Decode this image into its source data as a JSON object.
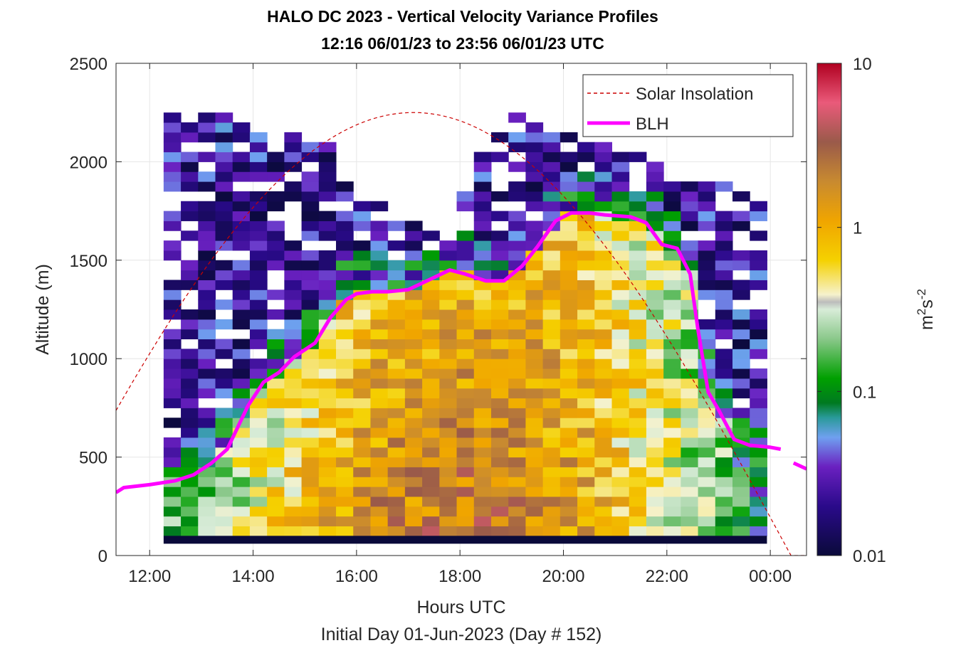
{
  "title": {
    "line1": "HALO DC 2023 - Vertical Velocity Variance Profiles",
    "line2": "12:16 06/01/23 to 23:56 06/01/23  UTC"
  },
  "chart_data": {
    "type": "heatmap",
    "xlabel": "Hours UTC",
    "xlabel2": "Initial Day 01-Jun-2023 (Day # 152)",
    "ylabel": "Altitude (m)",
    "xlim": [
      11.35,
      24.7
    ],
    "ylim": [
      0,
      2500
    ],
    "x_ticks": [
      12,
      14,
      16,
      18,
      20,
      22,
      24
    ],
    "x_tick_labels": [
      "12:00",
      "14:00",
      "16:00",
      "18:00",
      "20:00",
      "22:00",
      "00:00"
    ],
    "y_ticks": [
      0,
      500,
      1000,
      1500,
      2000,
      2500
    ],
    "y_tick_labels": [
      "0",
      "500",
      "1000",
      "1500",
      "2000",
      "2500"
    ],
    "grid": true,
    "legend": {
      "position": "top-right",
      "entries": [
        {
          "label": "Solar Insolation",
          "style": "dashed",
          "color": "#cc0000"
        },
        {
          "label": "BLH",
          "style": "solid",
          "color": "#ff00ff"
        }
      ]
    },
    "colorbar": {
      "label": "m²s⁻²",
      "scale": "log",
      "min": 0.01,
      "max": 10,
      "tick_labels": [
        "0.01",
        "0.1",
        "1",
        "10"
      ],
      "tick_values": [
        0.01,
        0.1,
        1,
        10
      ]
    },
    "heatmap": {
      "x_start": 12.27,
      "x_step": 0.3333,
      "columns": 35,
      "y_start": 100,
      "y_step": 50,
      "rows": 44,
      "value_range": [
        0.01,
        10
      ],
      "note_scale": "log"
    },
    "series": [
      {
        "name": "BLH",
        "x": [
          11.35,
          11.5,
          12.0,
          12.5,
          12.85,
          13.2,
          13.5,
          13.9,
          14.2,
          14.5,
          14.8,
          15.2,
          15.5,
          15.8,
          16.0,
          16.3,
          16.6,
          17.0,
          17.4,
          17.8,
          18.1,
          18.5,
          18.85,
          19.2,
          19.5,
          19.85,
          20.15,
          20.5,
          20.8,
          21.3,
          21.6,
          21.9,
          22.2,
          22.45,
          22.6,
          22.8,
          23.0,
          23.3,
          23.6,
          24.0,
          24.2
        ],
        "y": [
          320,
          345,
          360,
          380,
          410,
          470,
          540,
          760,
          880,
          930,
          1010,
          1080,
          1210,
          1300,
          1330,
          1340,
          1340,
          1350,
          1400,
          1450,
          1430,
          1395,
          1395,
          1470,
          1570,
          1700,
          1740,
          1740,
          1730,
          1720,
          1690,
          1580,
          1560,
          1430,
          1150,
          830,
          740,
          590,
          560,
          550,
          540
        ]
      },
      {
        "name": "BLH_tail",
        "x": [
          24.45,
          24.7
        ],
        "y": [
          470,
          440
        ]
      },
      {
        "name": "Solar Insolation",
        "style": "dashed",
        "peak_time": 17.1,
        "peak_altitude": 2250,
        "zero_time": 24.4
      }
    ]
  }
}
